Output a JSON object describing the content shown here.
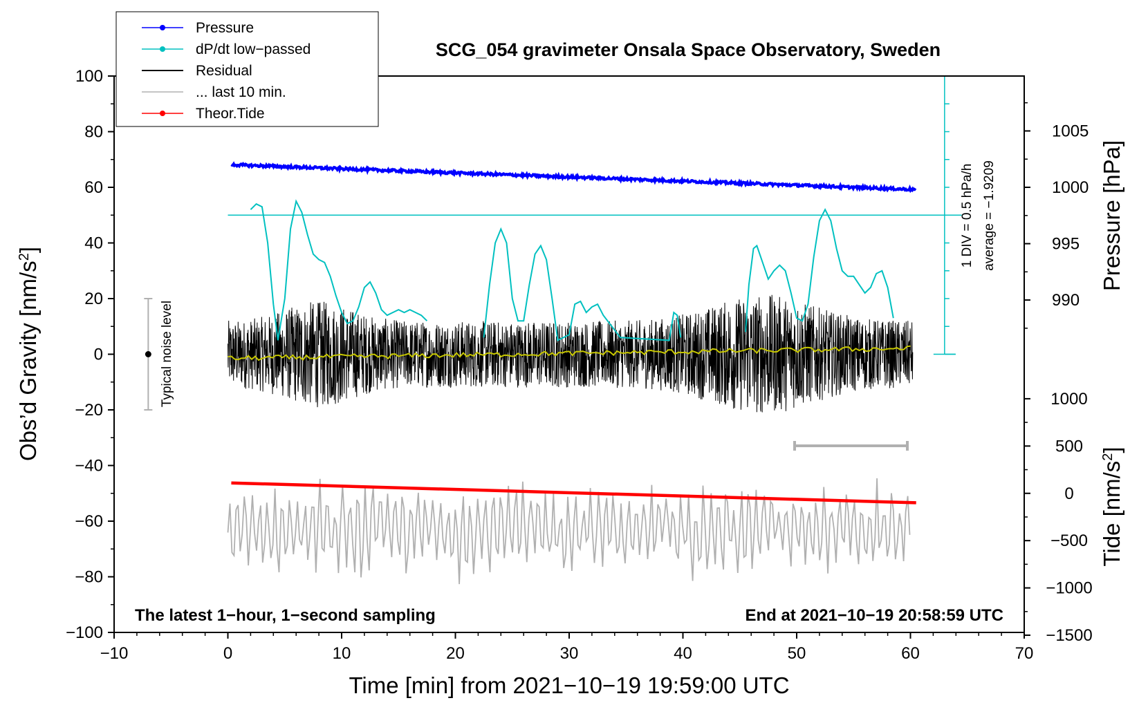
{
  "chart_data": {
    "type": "line",
    "title": "SCG_054 gravimeter Onsala Space Observatory, Sweden",
    "xlabel": "Time [min] from 2021−10−19 19:59:00 UTC",
    "ylabel_left": "Obs’d Gravity [nm/s",
    "ylabel_left_sup": "2",
    "ylabel_left_close": "]",
    "ylabel_pressure": "Pressure [hPa]",
    "ylabel_tide": "Tide [nm/s",
    "ylabel_tide_sup": "2",
    "ylabel_tide_close": "]",
    "xlim": [
      -10,
      70
    ],
    "ylim_left": [
      -100,
      100
    ],
    "x_ticks": [
      "−10",
      "0",
      "10",
      "20",
      "30",
      "40",
      "50",
      "60",
      "70"
    ],
    "y_ticks_left": [
      "−100",
      "−80",
      "−60",
      "−40",
      "−20",
      "0",
      "20",
      "40",
      "60",
      "80",
      "100"
    ],
    "pressure_ticks": [
      "990",
      "995",
      "1000",
      "1005"
    ],
    "tide_ticks": [
      "−1500",
      "−1000",
      "−500",
      "0",
      "500",
      "1000"
    ],
    "legend": [
      {
        "label": "Pressure",
        "color": "#0000ff",
        "marker": true
      },
      {
        "label": "dP/dt low−passed",
        "color": "#00c0c0",
        "marker": true
      },
      {
        "label": "Residual",
        "color": "#000000",
        "marker": false
      },
      {
        "label": "... last 10 min.",
        "color": "#b0b0b0",
        "marker": false
      },
      {
        "label": "Theor.Tide",
        "color": "#ff0000",
        "marker": true
      }
    ],
    "annotations": {
      "left_note": "The latest 1−hour, 1−second sampling",
      "right_note": "End at 2021−10−19 20:58:59 UTC",
      "noise_label": "Typical noise level",
      "dpdt_div": "1 DIV = 0.5 hPa/h",
      "dpdt_avg": "average = −1.9209"
    },
    "series": {
      "pressure_hpa": {
        "x_range": [
          0.3,
          60.5
        ],
        "start": 1002.0,
        "end": 999.8
      },
      "dpdt_curve_gravity_units": [
        [
          2.0,
          52
        ],
        [
          2.5,
          54
        ],
        [
          3.0,
          53
        ],
        [
          3.5,
          40
        ],
        [
          4.0,
          18
        ],
        [
          4.4,
          5
        ],
        [
          5.0,
          20
        ],
        [
          5.5,
          45
        ],
        [
          6.0,
          55
        ],
        [
          6.5,
          51
        ],
        [
          7.0,
          43
        ],
        [
          7.5,
          36
        ],
        [
          8.0,
          34
        ],
        [
          8.5,
          33
        ],
        [
          9.0,
          28
        ],
        [
          9.5,
          21
        ],
        [
          10.0,
          15
        ],
        [
          10.5,
          11
        ],
        [
          11.0,
          12
        ],
        [
          11.5,
          17
        ],
        [
          12.0,
          24
        ],
        [
          12.5,
          26
        ],
        [
          13.0,
          22
        ],
        [
          13.5,
          16
        ],
        [
          14.0,
          14
        ],
        [
          14.5,
          15
        ],
        [
          15.0,
          16
        ],
        [
          15.5,
          15
        ],
        [
          16.0,
          16
        ],
        [
          16.5,
          15
        ],
        [
          17.0,
          14
        ],
        [
          17.5,
          12
        ]
      ],
      "dpdt_curve_seg2": [
        [
          22.5,
          6
        ],
        [
          23.0,
          25
        ],
        [
          23.5,
          40
        ],
        [
          24.0,
          45
        ],
        [
          24.5,
          40
        ],
        [
          25.0,
          20
        ],
        [
          25.5,
          12
        ],
        [
          26.0,
          12
        ],
        [
          26.5,
          25
        ],
        [
          27.0,
          36
        ],
        [
          27.5,
          39
        ],
        [
          28.0,
          34
        ],
        [
          28.5,
          20
        ],
        [
          29.0,
          5
        ],
        [
          30.0,
          7
        ],
        [
          30.5,
          18
        ],
        [
          31.0,
          19
        ],
        [
          31.5,
          15
        ],
        [
          32.0,
          17
        ],
        [
          32.5,
          18
        ],
        [
          33.0,
          14
        ],
        [
          34.5,
          6
        ],
        [
          38.8,
          5
        ],
        [
          39.2,
          15
        ],
        [
          39.5,
          14
        ],
        [
          39.8,
          6
        ]
      ],
      "dpdt_curve_seg3": [
        [
          45.5,
          8
        ],
        [
          45.8,
          25
        ],
        [
          46.2,
          38
        ],
        [
          46.5,
          39
        ],
        [
          47.0,
          33
        ],
        [
          47.5,
          27
        ],
        [
          48.0,
          30
        ],
        [
          48.5,
          32
        ],
        [
          49.0,
          30
        ],
        [
          49.5,
          22
        ],
        [
          50.0,
          13
        ],
        [
          50.5,
          12
        ],
        [
          51.0,
          18
        ],
        [
          51.5,
          35
        ],
        [
          52.0,
          48
        ],
        [
          52.5,
          52
        ],
        [
          53.0,
          48
        ],
        [
          53.5,
          38
        ],
        [
          54.0,
          30
        ],
        [
          54.5,
          28
        ],
        [
          55.0,
          28
        ],
        [
          55.5,
          25
        ],
        [
          56.0,
          22
        ],
        [
          56.5,
          24
        ],
        [
          57.0,
          29
        ],
        [
          57.5,
          30
        ],
        [
          58.0,
          24
        ],
        [
          58.5,
          13
        ]
      ],
      "tide_range_nm_s2": {
        "start": 110,
        "end": -100
      },
      "residual_amplitude": 12,
      "last10_offset": -63
    },
    "noise_bar": {
      "x": -7,
      "y_center": 0,
      "half_range": 20
    }
  }
}
